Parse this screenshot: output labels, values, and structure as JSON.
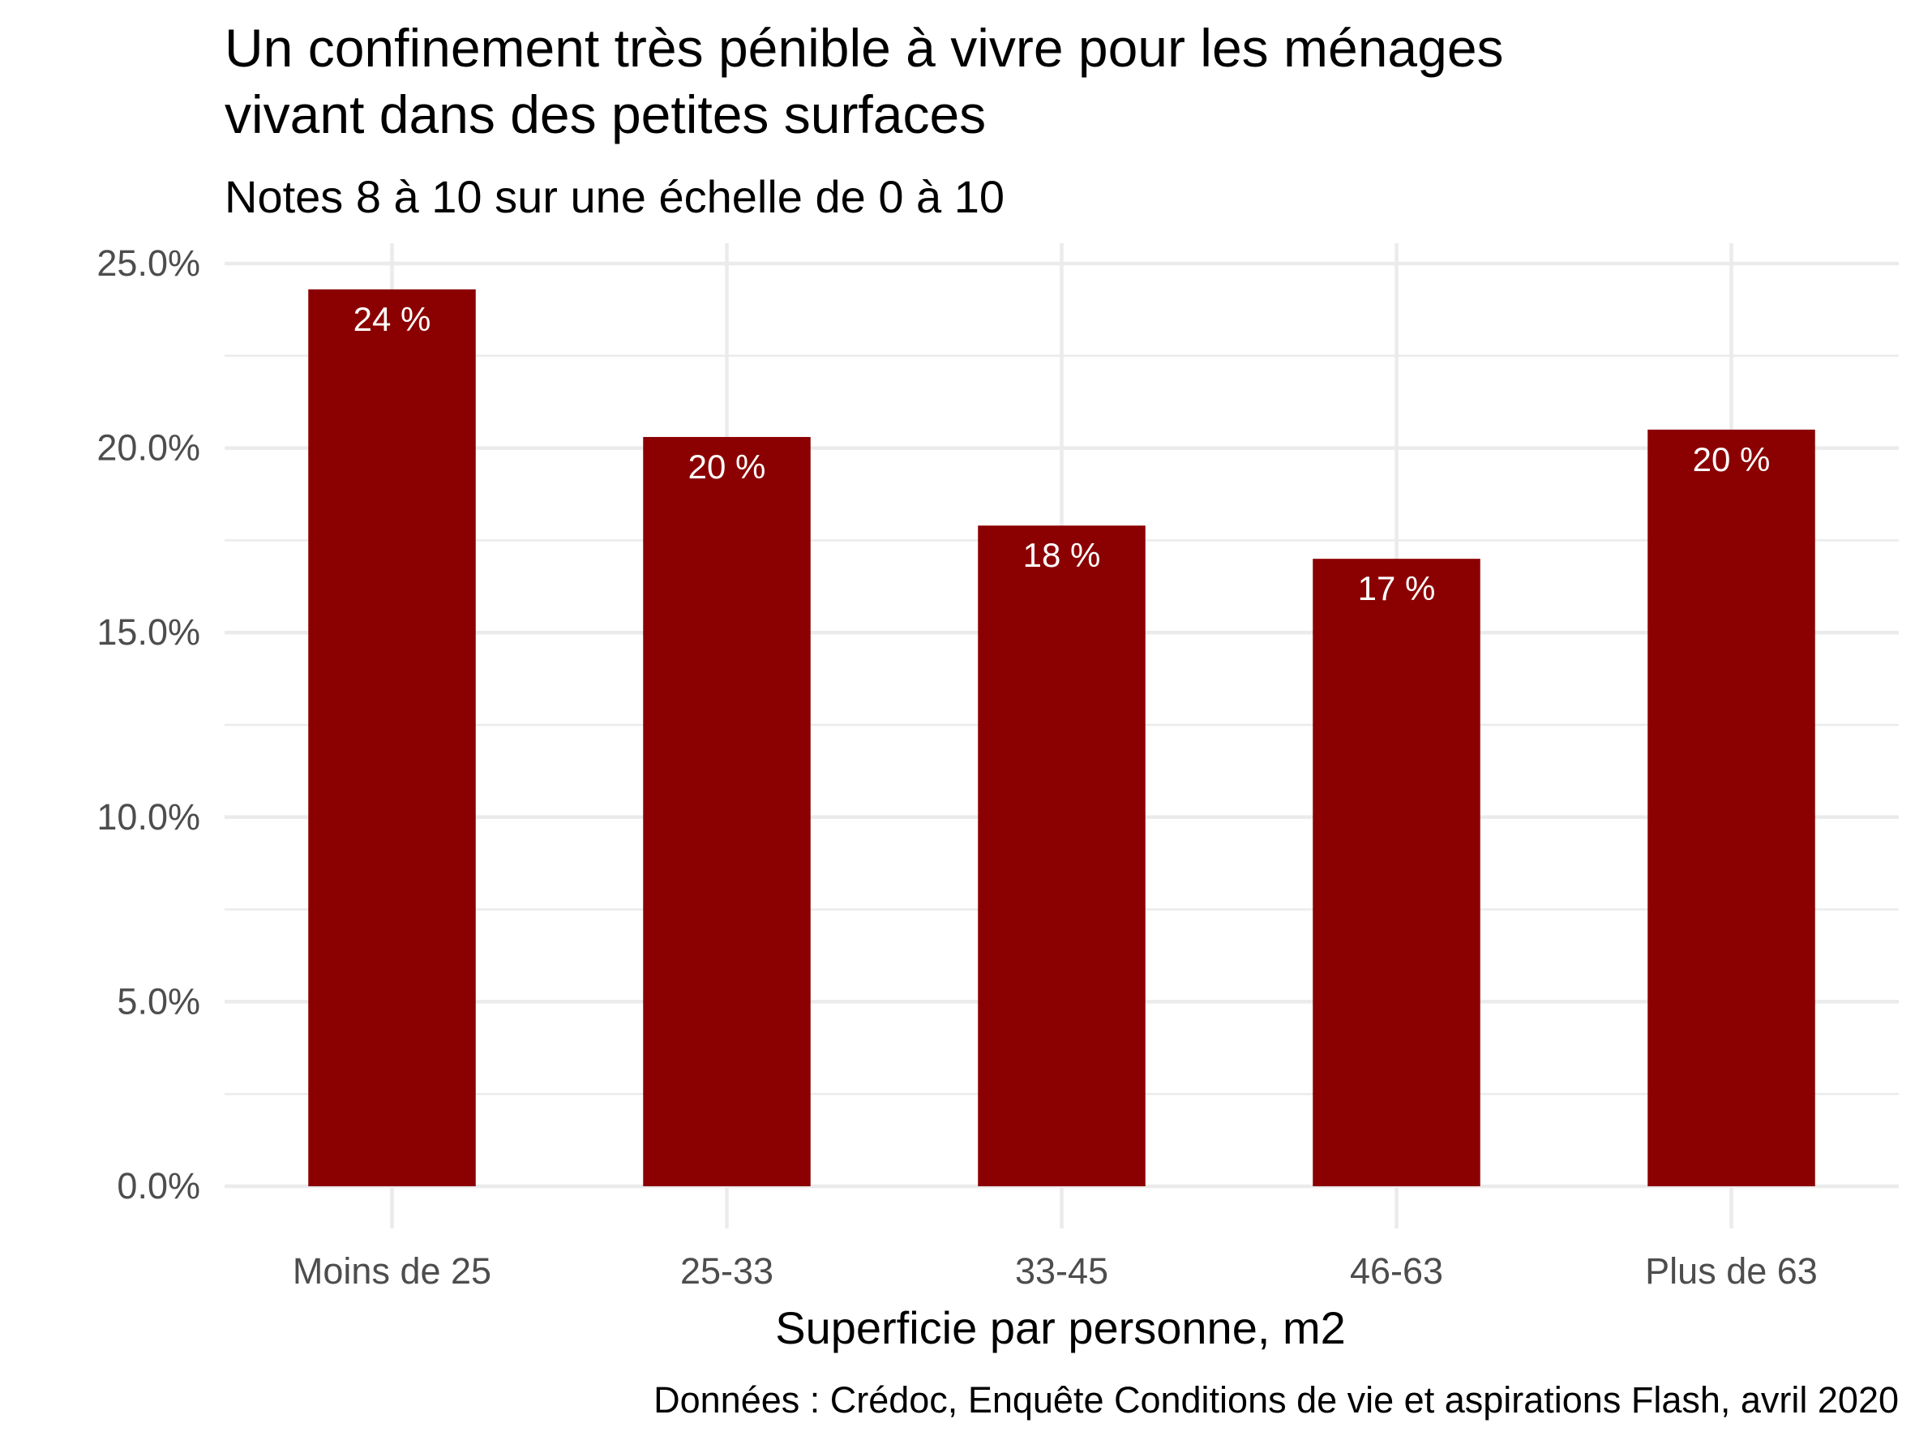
{
  "chart_data": {
    "type": "bar",
    "title_lines": [
      "Un confinement très pénible à vivre pour les ménages",
      "vivant dans des petites surfaces"
    ],
    "subtitle": "Notes 8 à 10 sur une échelle de 0 à 10",
    "xlabel": "Superficie par personne, m2",
    "ylabel": "",
    "caption": "Données : Crédoc, Enquête Conditions de vie et aspirations Flash, avril 2020",
    "categories": [
      "Moins de 25",
      "25-33",
      "33-45",
      "46-63",
      "Plus de 63"
    ],
    "values": [
      24.3,
      20.3,
      17.9,
      17.0,
      20.5
    ],
    "data_labels": [
      "24 %",
      "20 %",
      "18 %",
      "17 %",
      "20 %"
    ],
    "ylim": [
      0,
      25
    ],
    "yticks": [
      0,
      5,
      10,
      15,
      20,
      25
    ],
    "ytick_labels": [
      "0.0%",
      "5.0%",
      "10.0%",
      "15.0%",
      "20.0%",
      "25.0%"
    ],
    "grid": true,
    "legend": "none",
    "colors": {
      "bar": "#8b0000",
      "grid": "#ebebeb",
      "data_label": "#ffffff",
      "tick_label": "#4d4d4d"
    }
  }
}
